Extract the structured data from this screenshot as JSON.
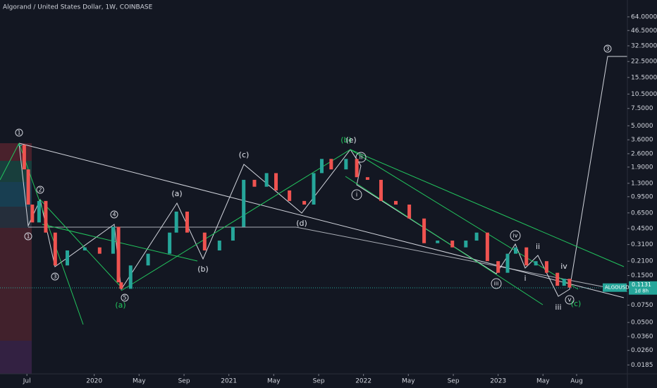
{
  "chart_data": {
    "type": "candlestick",
    "title": "Algorand / United States Dollar, 1W, COINBASE",
    "log_scale": true,
    "grid": false,
    "up_color": "#26a69a",
    "down_color": "#ef5350",
    "series": [
      {
        "name": "ALGOUSD",
        "x": [
          2019.45,
          2019.48,
          2019.51,
          2019.54,
          2019.59,
          2019.64,
          2019.71,
          2019.8,
          2019.93,
          2020.04,
          2020.14,
          2020.18,
          2020.2,
          2020.27,
          2020.4,
          2020.56,
          2020.61,
          2020.69,
          2020.82,
          2020.93,
          2021.03,
          2021.11,
          2021.19,
          2021.28,
          2021.35,
          2021.45,
          2021.56,
          2021.63,
          2021.69,
          2021.76,
          2021.87,
          2021.95,
          2022.03,
          2022.13,
          2022.24,
          2022.34,
          2022.45,
          2022.55,
          2022.66,
          2022.76,
          2022.84,
          2022.92,
          2023.0,
          2023.07,
          2023.13,
          2023.21,
          2023.28,
          2023.36,
          2023.44,
          2023.49,
          2023.53
        ],
        "values": [
          3.2,
          1.8,
          0.79,
          0.52,
          0.86,
          0.41,
          0.19,
          0.27,
          0.29,
          0.25,
          0.47,
          0.128,
          0.11,
          0.19,
          0.25,
          0.41,
          0.67,
          0.41,
          0.27,
          0.34,
          0.47,
          1.41,
          1.2,
          1.65,
          1.1,
          0.86,
          0.79,
          1.65,
          2.3,
          1.8,
          2.3,
          1.5,
          1.41,
          0.86,
          0.79,
          0.57,
          0.32,
          0.34,
          0.29,
          0.34,
          0.41,
          0.21,
          0.16,
          0.25,
          0.29,
          0.19,
          0.21,
          0.16,
          0.118,
          0.139,
          0.1131
        ]
      }
    ],
    "xlim": [
      2019.3,
      2023.96
    ],
    "xticks": [
      {
        "value": 2019.5,
        "label": "Jul"
      },
      {
        "value": 2020,
        "label": "2020"
      },
      {
        "value": 2020.333,
        "label": "May"
      },
      {
        "value": 2020.667,
        "label": "Sep"
      },
      {
        "value": 2021,
        "label": "2021"
      },
      {
        "value": 2021.333,
        "label": "May"
      },
      {
        "value": 2021.667,
        "label": "Sep"
      },
      {
        "value": 2022,
        "label": "2022"
      },
      {
        "value": 2022.333,
        "label": "May"
      },
      {
        "value": 2022.667,
        "label": "Sep"
      },
      {
        "value": 2023,
        "label": "2023"
      },
      {
        "value": 2023.333,
        "label": "May"
      },
      {
        "value": 2023.583,
        "label": "Aug"
      }
    ],
    "ylim": [
      0.015,
      95
    ],
    "yticks": [
      {
        "value": 64,
        "label": "64.0000"
      },
      {
        "value": 46.5,
        "label": "46.5000"
      },
      {
        "value": 32.5,
        "label": "32.5000"
      },
      {
        "value": 22.5,
        "label": "22.5000"
      },
      {
        "value": 15.5,
        "label": "15.5000"
      },
      {
        "value": 10.5,
        "label": "10.5000"
      },
      {
        "value": 7.5,
        "label": "7.5000"
      },
      {
        "value": 5,
        "label": "5.0000"
      },
      {
        "value": 3.6,
        "label": "3.6000"
      },
      {
        "value": 2.6,
        "label": "2.6000"
      },
      {
        "value": 1.9,
        "label": "1.9000"
      },
      {
        "value": 1.3,
        "label": "1.3000"
      },
      {
        "value": 0.95,
        "label": "0.9500"
      },
      {
        "value": 0.65,
        "label": "0.6500"
      },
      {
        "value": 0.45,
        "label": "0.4500"
      },
      {
        "value": 0.31,
        "label": "0.3100"
      },
      {
        "value": 0.21,
        "label": "0.2100"
      },
      {
        "value": 0.15,
        "label": "0.1500"
      },
      {
        "value": 0.075,
        "label": "0.0750"
      },
      {
        "value": 0.05,
        "label": "0.0500"
      },
      {
        "value": 0.036,
        "label": "0.0360"
      },
      {
        "value": 0.026,
        "label": "0.0260"
      },
      {
        "value": 0.0185,
        "label": "0.0185"
      }
    ],
    "price_label": {
      "name": "ALGOUSD",
      "value": 0.1131,
      "countdown": "1d 8h"
    },
    "annotations": [
      "1",
      "2",
      "1",
      "3",
      "4",
      "5",
      "(a)",
      "(a)",
      "(b)",
      "(c)",
      "(d)",
      "(b)",
      "(e)",
      "ii",
      "i",
      "iii",
      "iv",
      "ii",
      "i",
      "iv",
      "iii",
      "v",
      "(c)",
      "3"
    ]
  }
}
